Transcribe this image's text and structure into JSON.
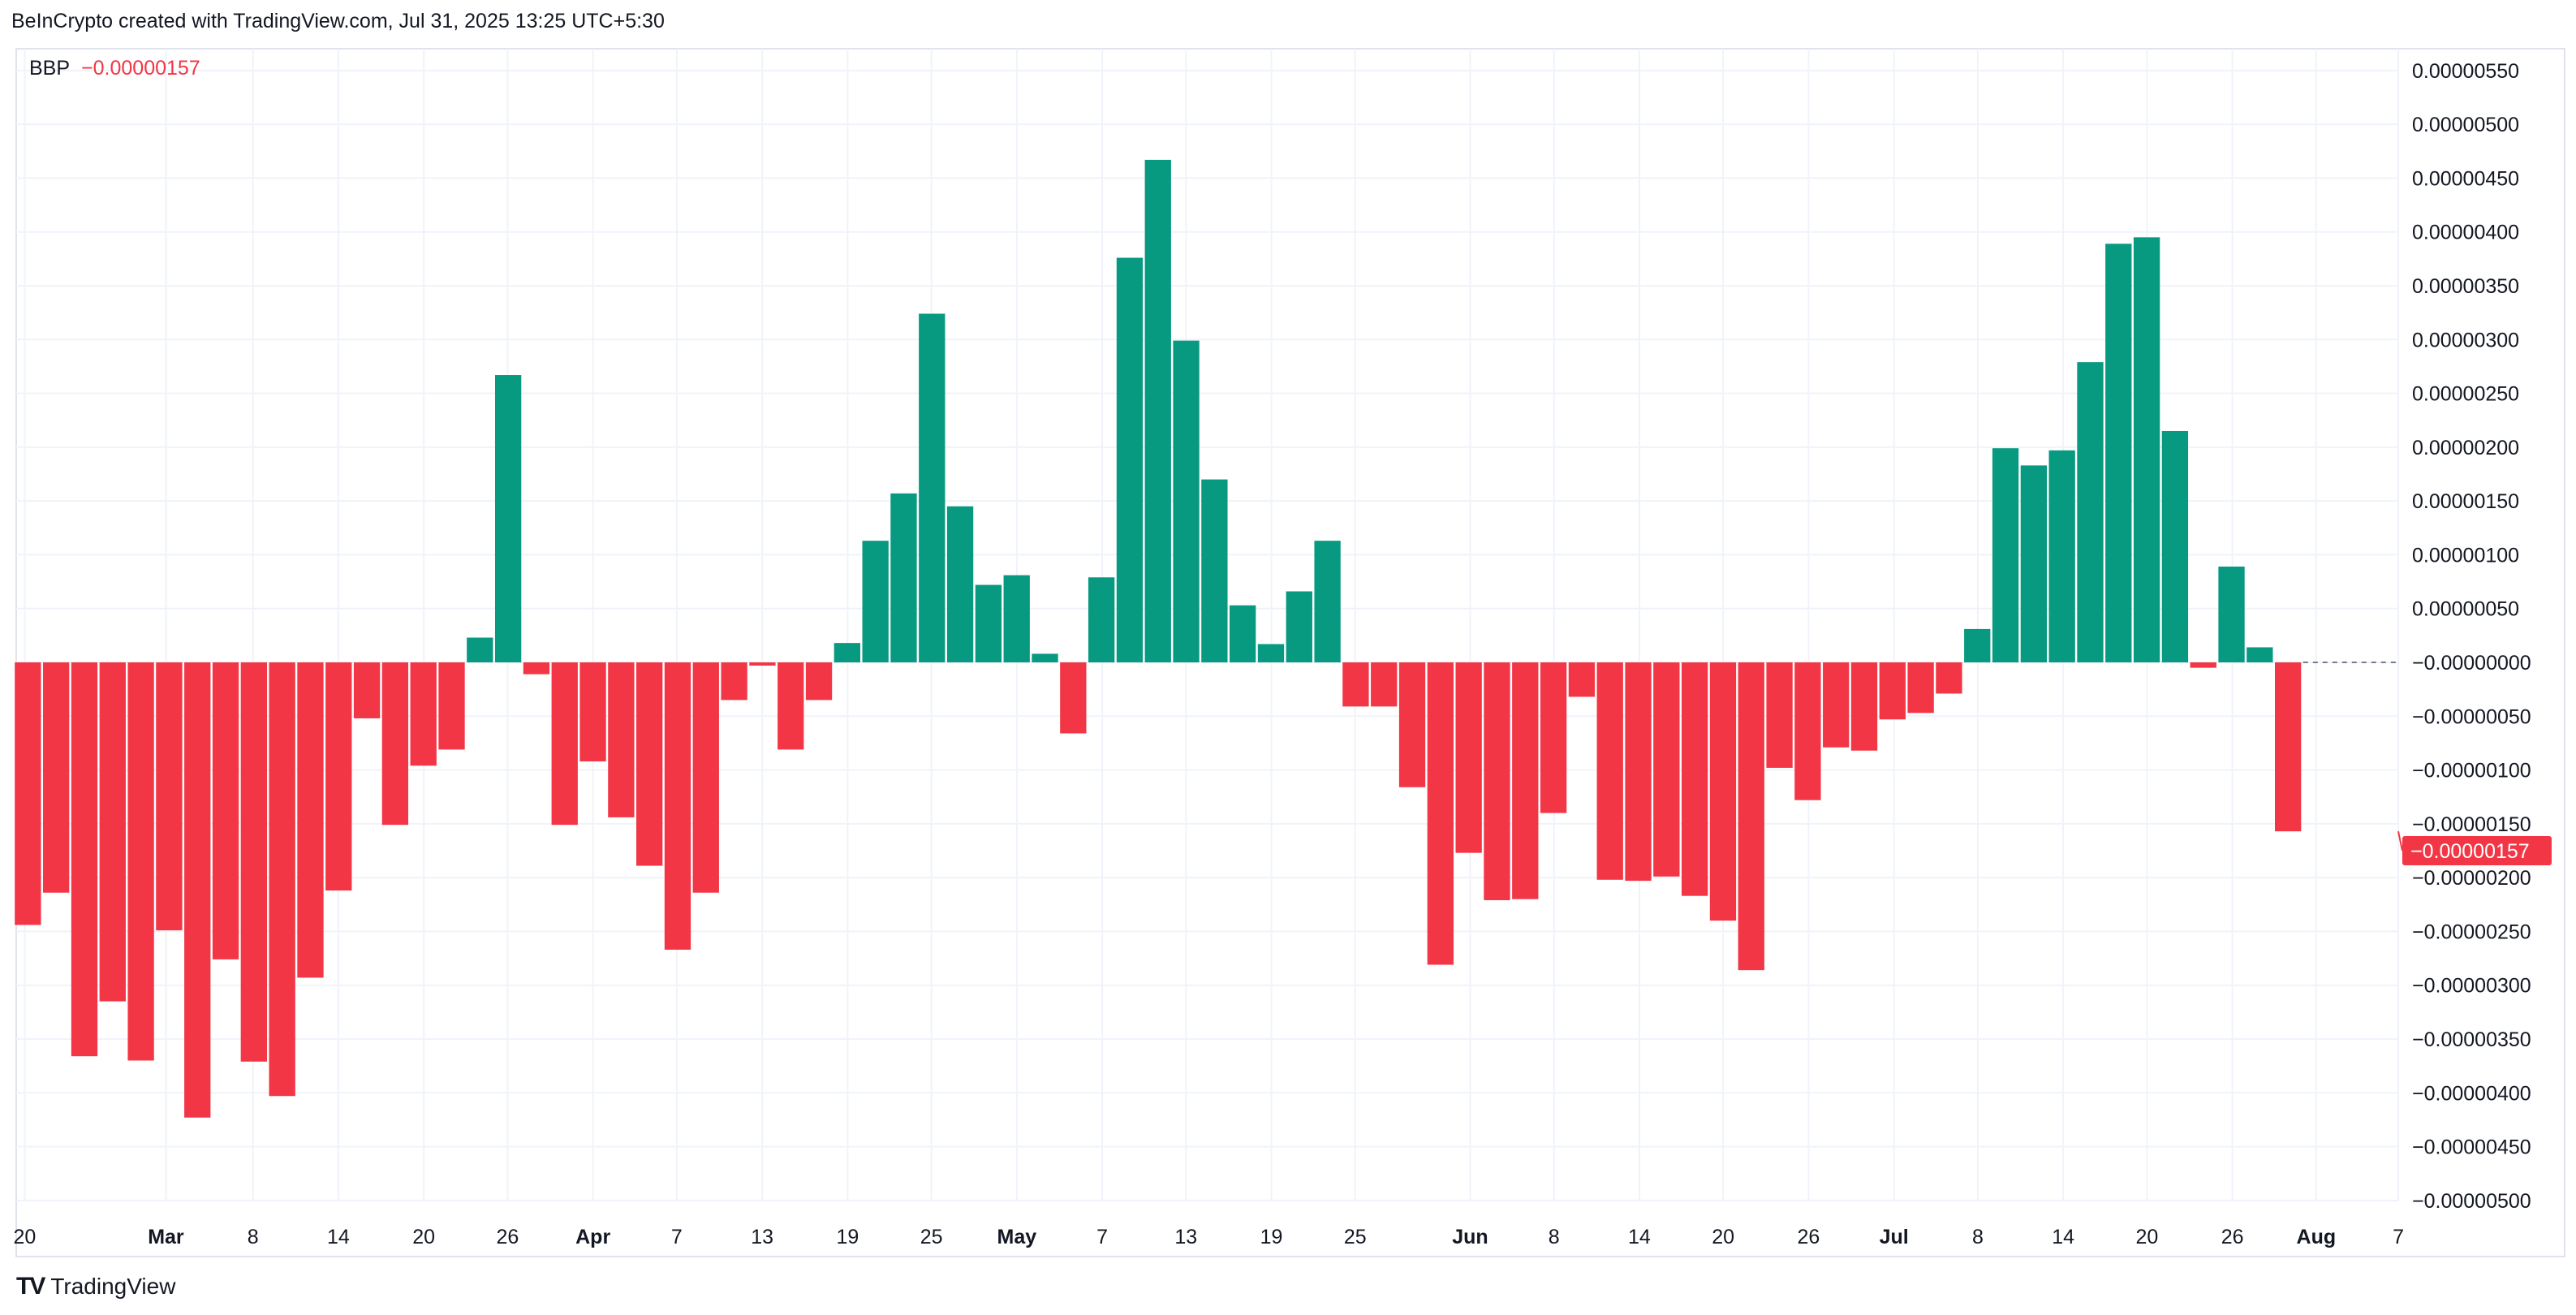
{
  "header": {
    "attribution": "BeInCrypto created with TradingView.com, Jul 31, 2025 13:25 UTC+5:30"
  },
  "legend": {
    "name": "BBP",
    "value": "−0.00000157"
  },
  "footer": {
    "brand": "TradingView"
  },
  "colors": {
    "positive": "#089981",
    "negative": "#F23645",
    "grid": "#F0F3FA",
    "text": "#131722"
  },
  "chart_data": {
    "type": "bar",
    "series": [
      {
        "name": "BBP",
        "unit": "1e-8",
        "values": [
          -244,
          -214,
          -366,
          -315,
          -370,
          -249,
          -423,
          -276,
          -371,
          -403,
          -293,
          -212,
          -52,
          -151,
          -96,
          -81,
          23,
          267,
          -11,
          -151,
          -92,
          -144,
          -189,
          -267,
          -214,
          -35,
          -3,
          -81,
          -35,
          18,
          113,
          157,
          324,
          145,
          72,
          81,
          8,
          -66,
          79,
          376,
          467,
          299,
          170,
          53,
          17,
          66,
          113,
          -41,
          -41,
          -116,
          -281,
          -177,
          -221,
          -220,
          -140,
          -32,
          -202,
          -203,
          -199,
          -217,
          -240,
          -286,
          -98,
          -128,
          -79,
          -82,
          -53,
          -47,
          -29,
          31,
          199,
          183,
          197,
          279,
          389,
          395,
          215,
          -5,
          89,
          14,
          -157
        ]
      }
    ],
    "x_tick_labels": [
      "20",
      "Mar",
      "8",
      "14",
      "20",
      "26",
      "Apr",
      "7",
      "13",
      "19",
      "25",
      "May",
      "7",
      "13",
      "19",
      "25",
      "Jun",
      "8",
      "14",
      "20",
      "26",
      "Jul",
      "8",
      "14",
      "20",
      "26",
      "Aug",
      "7"
    ],
    "y_tick_labels": [
      "0.00000550",
      "0.00000500",
      "0.00000450",
      "0.00000400",
      "0.00000350",
      "0.00000300",
      "0.00000250",
      "0.00000200",
      "0.00000150",
      "0.00000100",
      "0.00000050",
      "−0.00000000",
      "−0.00000050",
      "−0.00000100",
      "−0.00000150",
      "−0.00000200",
      "−0.00000250",
      "−0.00000300",
      "−0.00000350",
      "−0.00000400",
      "−0.00000450",
      "−0.00000500"
    ],
    "ylim": [
      -5.1e-06,
      5.6e-06
    ],
    "last_value_label": "−0.00000157",
    "grid": true
  }
}
